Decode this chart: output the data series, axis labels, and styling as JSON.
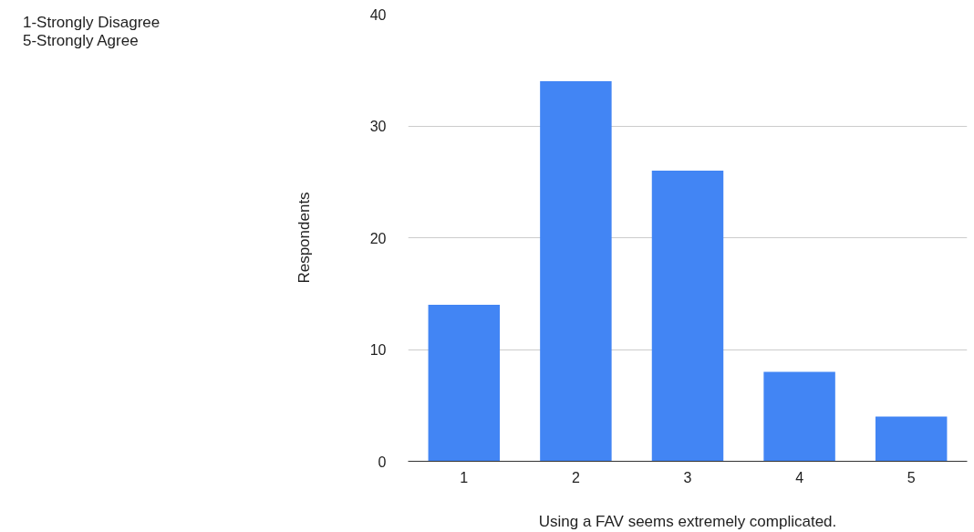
{
  "chart_data": {
    "type": "bar",
    "xlabel": "Using a FAV seems extremely complicated.",
    "ylabel": "Respondents",
    "categories": [
      "1",
      "2",
      "3",
      "4",
      "5"
    ],
    "series": [
      {
        "name": "1-Strongly Disagree\n5-Strongly Agree",
        "color": "#4285f4",
        "values": [
          14,
          34,
          26,
          8,
          4
        ]
      }
    ],
    "ylim": [
      0,
      40
    ],
    "yticks": [
      0,
      10,
      20,
      30,
      40
    ],
    "grid": "y",
    "legend": "top left"
  }
}
